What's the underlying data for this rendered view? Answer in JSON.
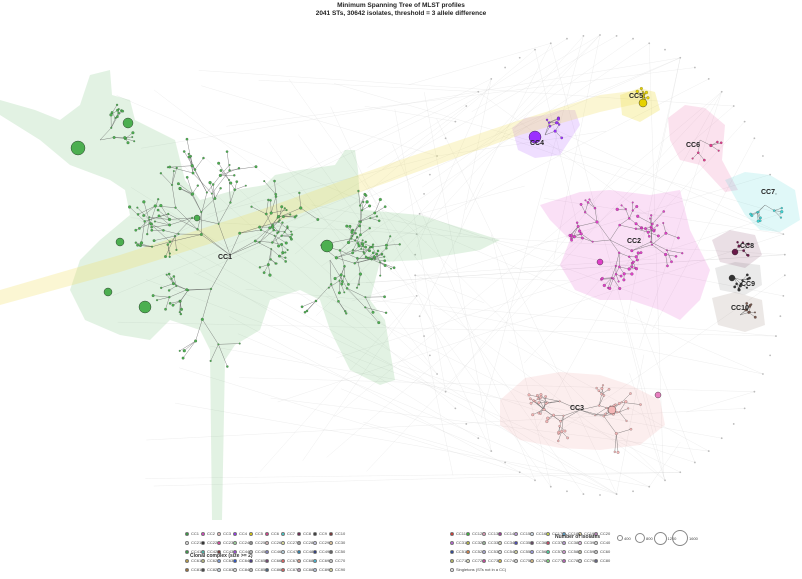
{
  "title": "Minimum Spanning Tree of MLST profiles",
  "subtitle": "2041 STs, 30642 isolates, threshold = 3 allele difference",
  "clusters": [
    {
      "label": "CC1",
      "color": "#4caf50"
    },
    {
      "label": "CC2",
      "color": "#e040c8"
    },
    {
      "label": "CC3",
      "color": "#f4b6b6"
    },
    {
      "label": "CC4",
      "color": "#9b30ff"
    },
    {
      "label": "CC5",
      "color": "#e6d200"
    },
    {
      "label": "CC6",
      "color": "#e23a8c"
    },
    {
      "label": "CC7",
      "color": "#40d4d4"
    },
    {
      "label": "CC8",
      "color": "#6a1a4a"
    },
    {
      "label": "CC9",
      "color": "#333333"
    },
    {
      "label": "CC10",
      "color": "#7a5a50"
    }
  ],
  "legend": {
    "title": "Clonal complex (size >= 2)",
    "items": [
      {
        "label": "CC1",
        "color": "#2e9e3a"
      },
      {
        "label": "CC2",
        "color": "#e040c8"
      },
      {
        "label": "CC3",
        "color": "#f3c4c4"
      },
      {
        "label": "CC4",
        "color": "#9b30ff"
      },
      {
        "label": "CC5",
        "color": "#e6d200"
      },
      {
        "label": "CC6",
        "color": "#e23a8c"
      },
      {
        "label": "CC7",
        "color": "#40d4d4"
      },
      {
        "label": "CC8",
        "color": "#6a1a4a"
      },
      {
        "label": "CC9",
        "color": "#333333"
      },
      {
        "label": "CC10",
        "color": "#7a2a2a"
      },
      {
        "label": "CC11",
        "color": "#e0302a"
      },
      {
        "label": "CC12",
        "color": "#30c030"
      },
      {
        "label": "CC13",
        "color": "#f0a0c0"
      },
      {
        "label": "CC14",
        "color": "#a0309a"
      },
      {
        "label": "CC15",
        "color": "#c8a0e8"
      },
      {
        "label": "CC16",
        "color": "#d8eaf8"
      },
      {
        "label": "CC17",
        "color": "#d0e040"
      },
      {
        "label": "CC18",
        "color": "#50a0d0"
      },
      {
        "label": "CC19",
        "color": "#f0e0a0"
      },
      {
        "label": "CC20",
        "color": "#c080c0"
      },
      {
        "label": "CC21",
        "color": "#e8e8e8"
      },
      {
        "label": "CC22",
        "color": "#202020"
      },
      {
        "label": "CC23",
        "color": "#e040a0"
      },
      {
        "label": "CC24",
        "color": "#a0e0a0"
      },
      {
        "label": "CC25",
        "color": "#909090"
      },
      {
        "label": "CC26",
        "color": "#e0c0c0"
      },
      {
        "label": "CC27",
        "color": "#f0f0a0"
      },
      {
        "label": "CC28",
        "color": "#a0a0a0"
      },
      {
        "label": "CC29",
        "color": "#d0d0f0"
      },
      {
        "label": "CC30",
        "color": "#f0d0a0"
      },
      {
        "label": "CC31",
        "color": "#c060e0"
      },
      {
        "label": "CC32",
        "color": "#c0c040"
      },
      {
        "label": "CC33",
        "color": "#a0c0a0"
      },
      {
        "label": "CC34",
        "color": "#e0e0c0"
      },
      {
        "label": "CC35",
        "color": "#4040c0"
      },
      {
        "label": "CC36",
        "color": "#604060"
      },
      {
        "label": "CC37",
        "color": "#d04060"
      },
      {
        "label": "CC38",
        "color": "#c0a0e0"
      },
      {
        "label": "CC39",
        "color": "#f0c0f0"
      },
      {
        "label": "CC40",
        "color": "#e0e0e0"
      },
      {
        "label": "CC41",
        "color": "#30a040"
      },
      {
        "label": "CC42",
        "color": "#40c0b0"
      },
      {
        "label": "CC43",
        "color": "#703030"
      },
      {
        "label": "CC44",
        "color": "#a040e0"
      },
      {
        "label": "CC45",
        "color": "#c0c0c0"
      },
      {
        "label": "CC46",
        "color": "#8080c0"
      },
      {
        "label": "CC47",
        "color": "#c0e0f0"
      },
      {
        "label": "CC48",
        "color": "#2080b0"
      },
      {
        "label": "CC49",
        "color": "#203080"
      },
      {
        "label": "CC50",
        "color": "#606060"
      },
      {
        "label": "CC51",
        "color": "#2040a0"
      },
      {
        "label": "CC52",
        "color": "#e08040"
      },
      {
        "label": "CC53",
        "color": "#b0b0e0"
      },
      {
        "label": "CC54",
        "color": "#f0f0f0"
      },
      {
        "label": "CC55",
        "color": "#e0e0a0"
      },
      {
        "label": "CC56",
        "color": "#a0a0f0"
      },
      {
        "label": "CC57",
        "color": "#40e0a0"
      },
      {
        "label": "CC58",
        "color": "#e0a0e0"
      },
      {
        "label": "CC59",
        "color": "#c0c0a0"
      },
      {
        "label": "CC60",
        "color": "#d0d0d0"
      },
      {
        "label": "CC61",
        "color": "#c0a040"
      },
      {
        "label": "CC62",
        "color": "#c0c080"
      },
      {
        "label": "CC63",
        "color": "#80a0e0"
      },
      {
        "label": "CC64",
        "color": "#2050d0"
      },
      {
        "label": "CC65",
        "color": "#403080"
      },
      {
        "label": "CC66",
        "color": "#704070"
      },
      {
        "label": "CC67",
        "color": "#f06060"
      },
      {
        "label": "CC68",
        "color": "#e0a090"
      },
      {
        "label": "CC69",
        "color": "#40c0e0"
      },
      {
        "label": "CC70",
        "color": "#d0d0d0"
      },
      {
        "label": "CC71",
        "color": "#c0c060"
      },
      {
        "label": "CC72",
        "color": "#f0f0d0"
      },
      {
        "label": "CC73",
        "color": "#d040a0"
      },
      {
        "label": "CC74",
        "color": "#e0c040"
      },
      {
        "label": "CC75",
        "color": "#e0e0e0"
      },
      {
        "label": "CC76",
        "color": "#e0c080"
      },
      {
        "label": "CC77",
        "color": "#80e080"
      },
      {
        "label": "CC78",
        "color": "#c060c0"
      },
      {
        "label": "CC79",
        "color": "#e0e0e0"
      },
      {
        "label": "CC80",
        "color": "#606080"
      },
      {
        "label": "CC81",
        "color": "#a07030"
      },
      {
        "label": "CC82",
        "color": "#404040"
      },
      {
        "label": "CC83",
        "color": "#d0e0f0"
      },
      {
        "label": "CC84",
        "color": "#f0f0f0"
      },
      {
        "label": "CC85",
        "color": "#c0c0c0"
      },
      {
        "label": "CC86",
        "color": "#406080"
      },
      {
        "label": "CC87",
        "color": "#e06060"
      },
      {
        "label": "CC88",
        "color": "#c0a0c0"
      },
      {
        "label": "CC89",
        "color": "#c0d0f0"
      },
      {
        "label": "CC90",
        "color": "#e0e0a0"
      },
      {
        "label": "Singletons (STs not in a CC)",
        "color": "#f4f4f4"
      }
    ]
  },
  "size_legend": {
    "title": "Number of isolates",
    "values": [
      "400",
      "800",
      "1200",
      "1600"
    ]
  }
}
